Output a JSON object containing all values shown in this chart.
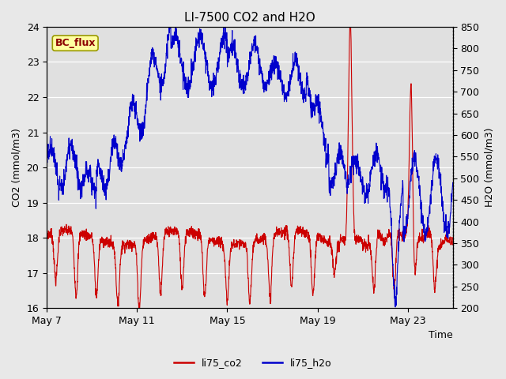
{
  "title": "LI-7500 CO2 and H2O",
  "xlabel": "Time",
  "ylabel_left": "CO2 (mmol/m3)",
  "ylabel_right": "H2O (mmol/m3)",
  "legend_label": "BC_flux",
  "series_labels": [
    "li75_co2",
    "li75_h2o"
  ],
  "co2_color": "#cc0000",
  "h2o_color": "#0000cc",
  "fig_bg_color": "#e8e8e8",
  "plot_bg_color": "#e0e0e0",
  "ylim_left": [
    16.0,
    24.0
  ],
  "ylim_right": [
    200,
    850
  ],
  "yticks_left": [
    16.0,
    17.0,
    18.0,
    19.0,
    20.0,
    21.0,
    22.0,
    23.0,
    24.0
  ],
  "yticks_right": [
    200,
    250,
    300,
    350,
    400,
    450,
    500,
    550,
    600,
    650,
    700,
    750,
    800,
    850
  ],
  "xtick_positions": [
    0,
    4,
    8,
    12,
    16
  ],
  "xtick_labels": [
    "May 7",
    "May 11",
    "May 15",
    "May 19",
    "May 23"
  ],
  "title_fontsize": 11,
  "axis_label_fontsize": 9,
  "tick_fontsize": 9,
  "legend_fontsize": 9,
  "xlim": [
    0,
    18
  ]
}
